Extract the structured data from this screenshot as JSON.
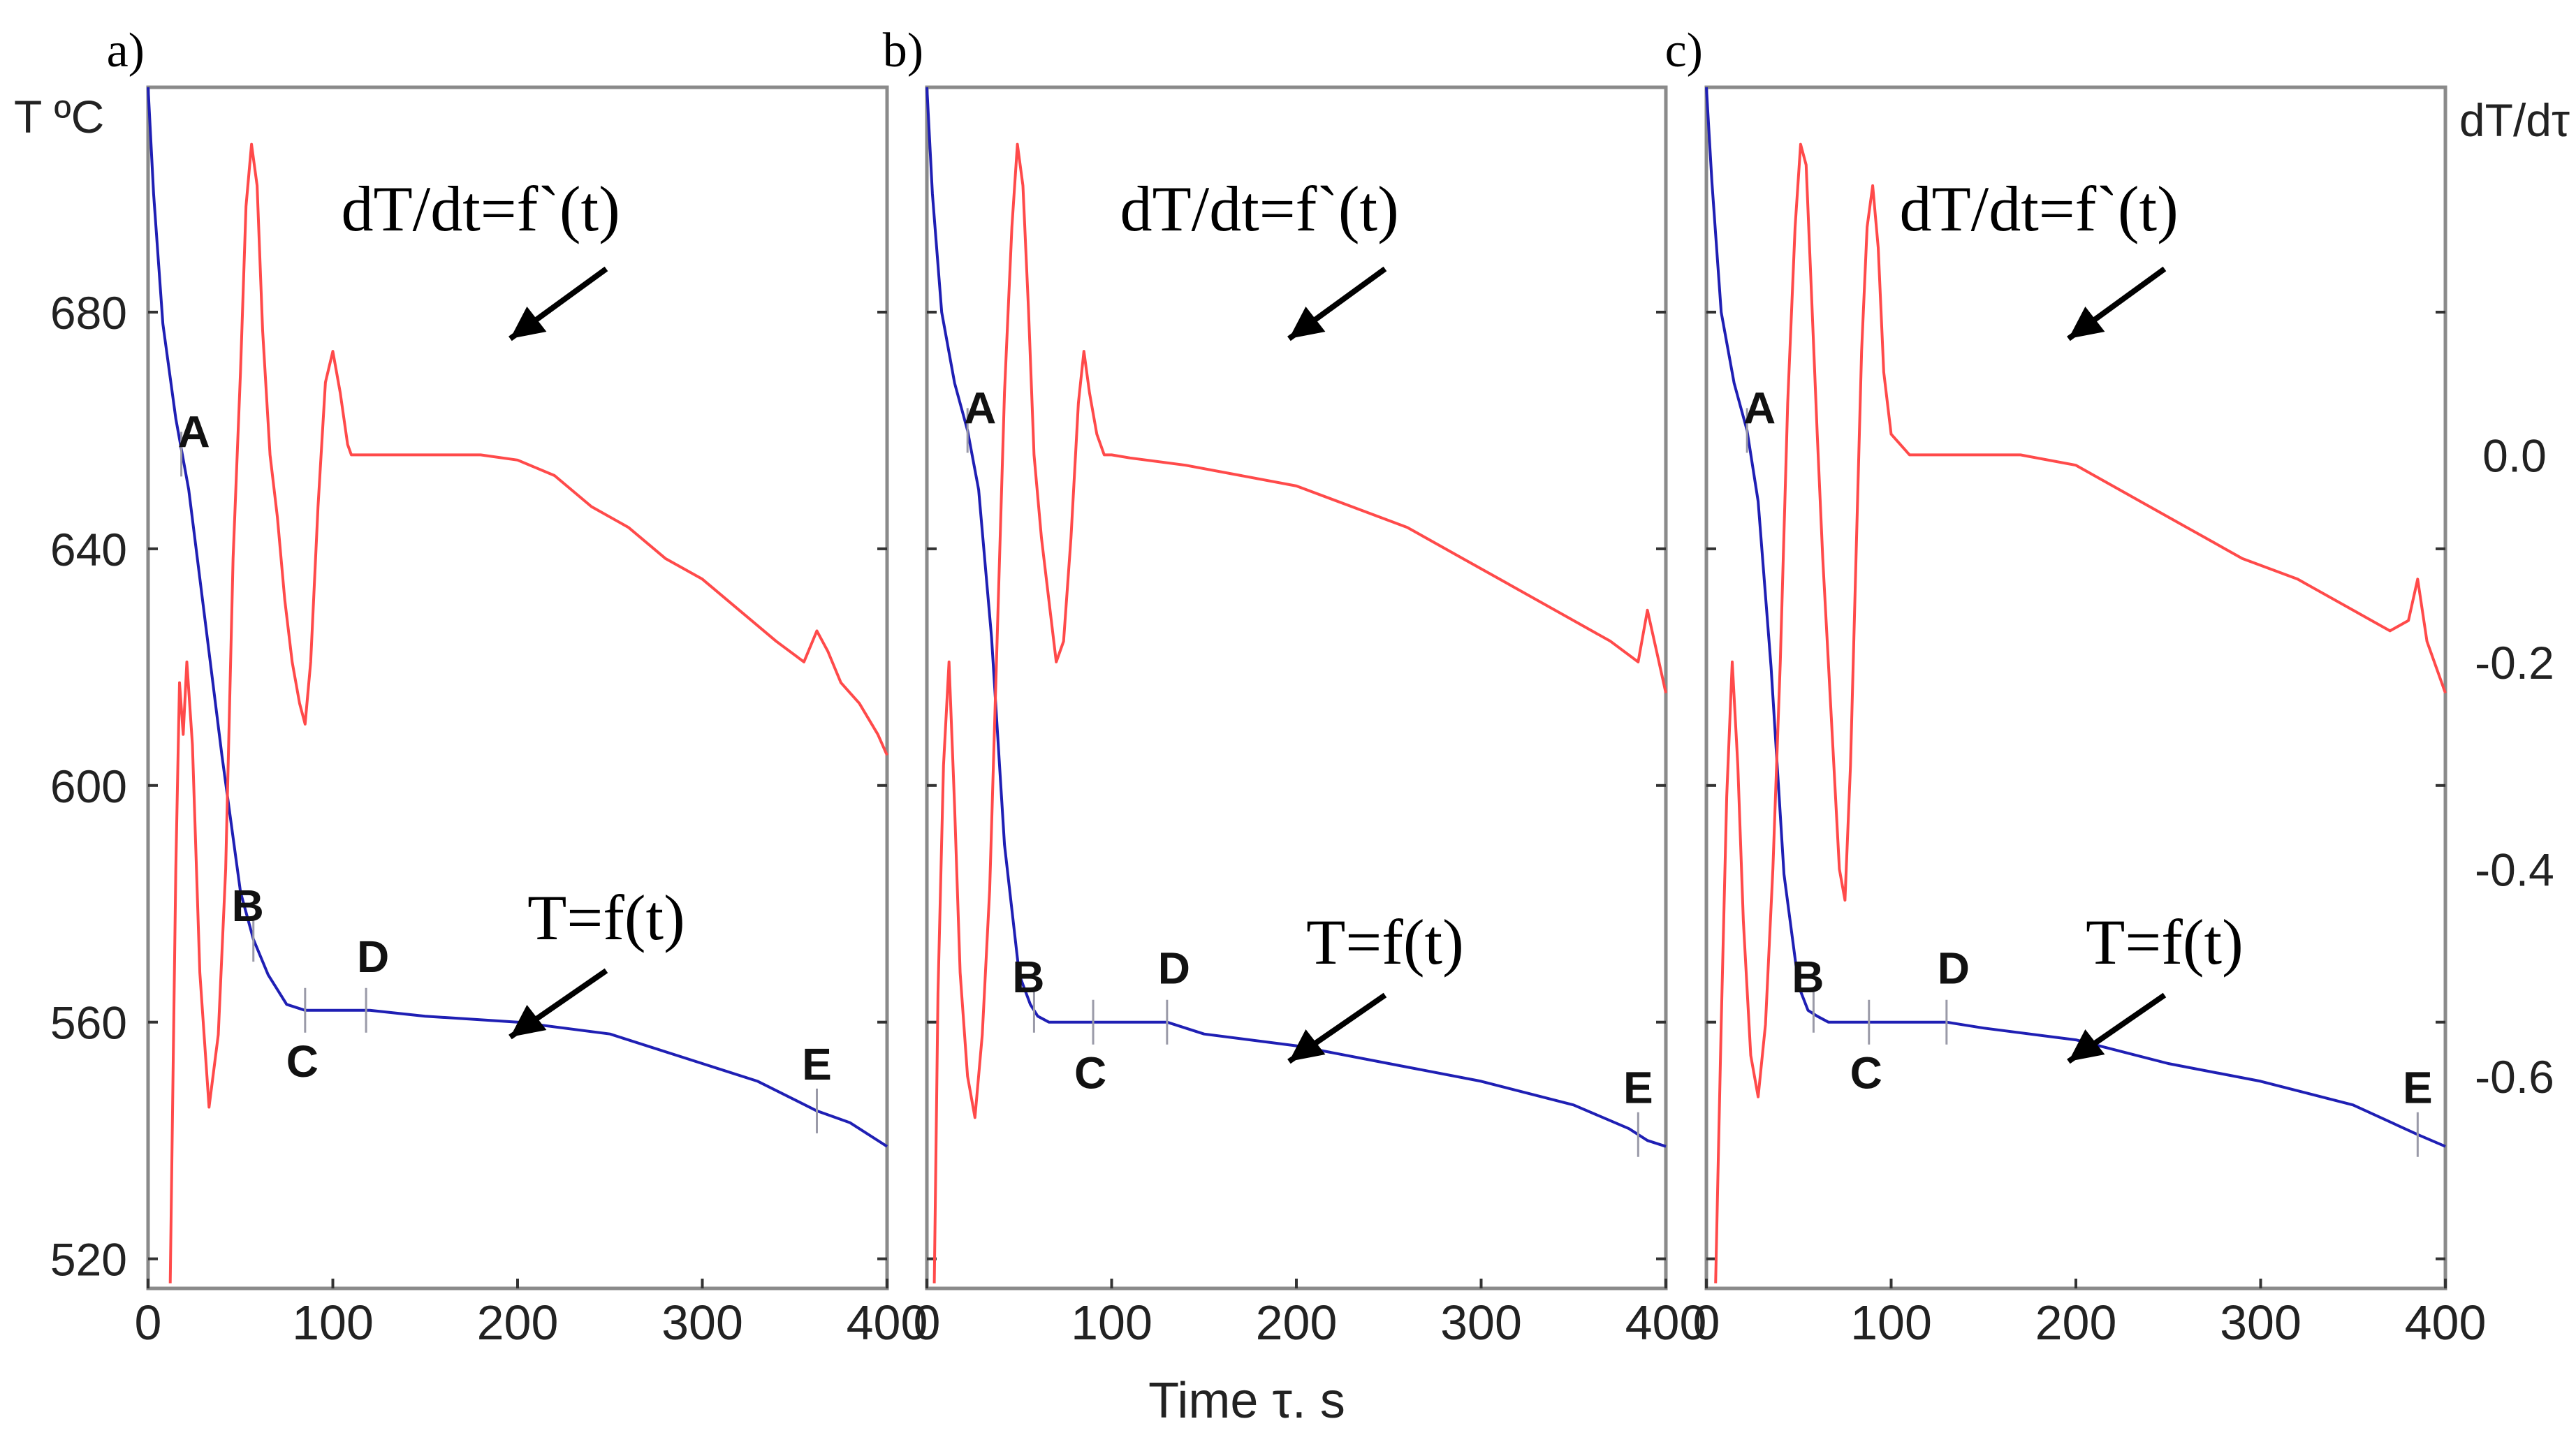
{
  "colors": {
    "temperature": "#1f1fb4",
    "derivative": "#ff4a4a",
    "frame": "#8a8a8a",
    "marker": "#9a9aa8",
    "text": "#222222",
    "annotation": "#000000"
  },
  "chart_data": {
    "type": "line",
    "shared_x_label": "Time τ. s",
    "left_axis_label": "T ºC",
    "right_axis_label": "dT/dτ",
    "xlim": [
      0,
      400
    ],
    "ylim_left": [
      515,
      718
    ],
    "ylim_right": [
      -0.805,
      0.355
    ],
    "x_ticks": [
      "0",
      "100",
      "200",
      "300",
      "400"
    ],
    "y_left_ticks": [
      {
        "value": 520,
        "label": "520"
      },
      {
        "value": 560,
        "label": "560"
      },
      {
        "value": 600,
        "label": "600"
      },
      {
        "value": 640,
        "label": "640"
      },
      {
        "value": 680,
        "label": "680"
      }
    ],
    "y_right_ticks": [
      {
        "value": 0.0,
        "label": "0.0"
      },
      {
        "value": -0.2,
        "label": "-0.2"
      },
      {
        "value": -0.4,
        "label": "-0.4"
      },
      {
        "value": -0.6,
        "label": "-0.6"
      }
    ],
    "panels": [
      {
        "label": "a)",
        "annotation_derivative": "dT/dt=f`(t)",
        "annotation_temperature": "T=f(t)",
        "series": [
          {
            "name": "T=f(t)",
            "axis": "left",
            "x": [
              0,
              3,
              8,
              15,
              22,
              30,
              40,
              50,
              57,
              65,
              75,
              85,
              100,
              120,
              150,
              200,
              250,
              300,
              330,
              362,
              380,
              400
            ],
            "y": [
              718,
              700,
              678,
              662,
              650,
              630,
              605,
              582,
              574,
              568,
              563,
              562,
              562,
              562,
              561,
              560,
              558,
              553,
              550,
              545,
              543,
              539
            ]
          },
          {
            "name": "dT/dt=f`(t)",
            "axis": "right",
            "x": [
              12,
              15,
              17,
              19,
              21,
              24,
              28,
              33,
              38,
              42,
              46,
              50,
              53,
              56,
              59,
              62,
              66,
              70,
              74,
              78,
              82,
              85,
              88,
              92,
              96,
              100,
              104,
              108,
              110,
              140,
              180,
              200,
              220,
              240,
              260,
              280,
              300,
              320,
              340,
              355,
              362,
              368,
              375,
              385,
              395,
              400
            ],
            "y": [
              -0.8,
              -0.4,
              -0.22,
              -0.27,
              -0.2,
              -0.28,
              -0.5,
              -0.63,
              -0.56,
              -0.4,
              -0.1,
              0.08,
              0.24,
              0.3,
              0.26,
              0.12,
              0.0,
              -0.06,
              -0.14,
              -0.2,
              -0.24,
              -0.26,
              -0.2,
              -0.05,
              0.07,
              0.1,
              0.06,
              0.01,
              0.0,
              0.0,
              0.0,
              -0.005,
              -0.02,
              -0.05,
              -0.07,
              -0.1,
              -0.12,
              -0.15,
              -0.18,
              -0.2,
              -0.17,
              -0.19,
              -0.22,
              -0.24,
              -0.27,
              -0.29
            ]
          }
        ],
        "points": [
          {
            "label": "A",
            "x": 18,
            "y": 656
          },
          {
            "label": "B",
            "x": 57,
            "y": 574
          },
          {
            "label": "C",
            "x": 85,
            "y": 562
          },
          {
            "label": "D",
            "x": 118,
            "y": 562
          },
          {
            "label": "E",
            "x": 362,
            "y": 545
          }
        ]
      },
      {
        "label": "b)",
        "annotation_derivative": "dT/dt=f`(t)",
        "annotation_temperature": "T=f(t)",
        "series": [
          {
            "name": "T=f(t)",
            "axis": "left",
            "x": [
              0,
              3,
              8,
              15,
              22,
              28,
              35,
              42,
              50,
              56,
              60,
              66,
              80,
              100,
              130,
              150,
              200,
              250,
              300,
              350,
              380,
              390,
              400
            ],
            "y": [
              718,
              700,
              680,
              668,
              660,
              650,
              625,
              590,
              568,
              563,
              561,
              560,
              560,
              560,
              560,
              558,
              556,
              553,
              550,
              546,
              542,
              540,
              539
            ]
          },
          {
            "name": "dT/dt=f`(t)",
            "axis": "right",
            "x": [
              4,
              6,
              9,
              12,
              15,
              18,
              22,
              26,
              30,
              34,
              38,
              42,
              46,
              49,
              52,
              55,
              58,
              62,
              66,
              70,
              74,
              78,
              82,
              85,
              88,
              92,
              96,
              100,
              110,
              140,
              170,
              200,
              230,
              260,
              290,
              320,
              350,
              370,
              385,
              390,
              395,
              400
            ],
            "y": [
              -0.8,
              -0.52,
              -0.3,
              -0.2,
              -0.34,
              -0.5,
              -0.6,
              -0.64,
              -0.56,
              -0.42,
              -0.18,
              0.06,
              0.22,
              0.3,
              0.26,
              0.14,
              0.0,
              -0.08,
              -0.14,
              -0.2,
              -0.18,
              -0.08,
              0.05,
              0.1,
              0.06,
              0.02,
              0.0,
              0.0,
              -0.003,
              -0.01,
              -0.02,
              -0.03,
              -0.05,
              -0.07,
              -0.1,
              -0.13,
              -0.16,
              -0.18,
              -0.2,
              -0.15,
              -0.19,
              -0.23
            ]
          }
        ],
        "points": [
          {
            "label": "A",
            "x": 22,
            "y": 660
          },
          {
            "label": "B",
            "x": 58,
            "y": 562
          },
          {
            "label": "C",
            "x": 90,
            "y": 560
          },
          {
            "label": "D",
            "x": 130,
            "y": 560
          },
          {
            "label": "E",
            "x": 385,
            "y": 541
          }
        ]
      },
      {
        "label": "c)",
        "annotation_derivative": "dT/dt=f`(t)",
        "annotation_temperature": "T=f(t)",
        "series": [
          {
            "name": "T=f(t)",
            "axis": "left",
            "x": [
              0,
              3,
              8,
              15,
              22,
              28,
              35,
              42,
              50,
              55,
              60,
              66,
              80,
              100,
              130,
              150,
              200,
              250,
              300,
              350,
              385,
              400
            ],
            "y": [
              718,
              702,
              680,
              668,
              660,
              648,
              620,
              585,
              566,
              562,
              561,
              560,
              560,
              560,
              560,
              559,
              557,
              553,
              550,
              546,
              541,
              539
            ]
          },
          {
            "name": "dT/dt=f`(t)",
            "axis": "right",
            "x": [
              5,
              8,
              11,
              14,
              17,
              20,
              24,
              28,
              32,
              36,
              40,
              44,
              48,
              51,
              54,
              57,
              60,
              63,
              66,
              69,
              72,
              75,
              78,
              81,
              84,
              87,
              90,
              93,
              96,
              100,
              110,
              140,
              170,
              200,
              230,
              260,
              290,
              320,
              350,
              370,
              380,
              385,
              390,
              400
            ],
            "y": [
              -0.8,
              -0.55,
              -0.33,
              -0.2,
              -0.3,
              -0.45,
              -0.58,
              -0.62,
              -0.55,
              -0.4,
              -0.2,
              0.05,
              0.22,
              0.3,
              0.28,
              0.15,
              0.02,
              -0.1,
              -0.2,
              -0.3,
              -0.4,
              -0.43,
              -0.3,
              -0.1,
              0.1,
              0.22,
              0.26,
              0.2,
              0.08,
              0.02,
              0.0,
              0.0,
              0.0,
              -0.01,
              -0.04,
              -0.07,
              -0.1,
              -0.12,
              -0.15,
              -0.17,
              -0.16,
              -0.12,
              -0.18,
              -0.23
            ]
          }
        ],
        "points": [
          {
            "label": "A",
            "x": 22,
            "y": 660
          },
          {
            "label": "B",
            "x": 58,
            "y": 562
          },
          {
            "label": "C",
            "x": 88,
            "y": 560
          },
          {
            "label": "D",
            "x": 130,
            "y": 560
          },
          {
            "label": "E",
            "x": 385,
            "y": 541
          }
        ]
      }
    ]
  }
}
